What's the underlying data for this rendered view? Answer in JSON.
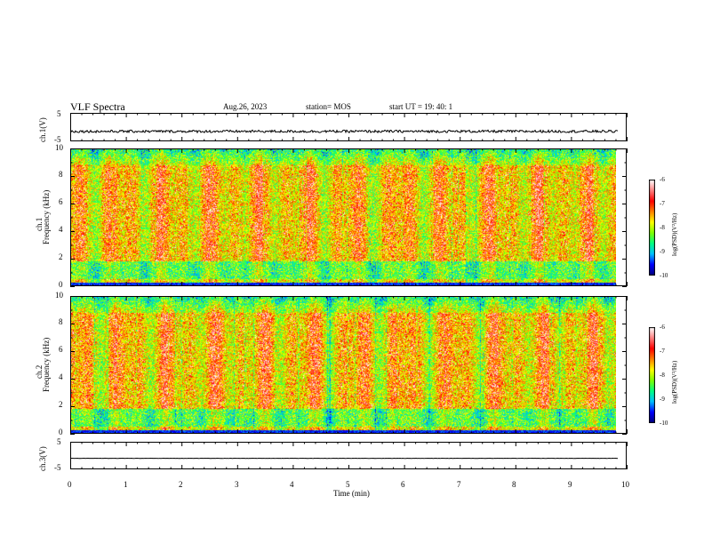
{
  "header": {
    "title": "VLF Spectra",
    "date": "Aug.26, 2023",
    "station": "station= MOS",
    "start": "start  UT =   19: 40: 1"
  },
  "chart_data": {
    "type": "heatmap",
    "xlabel": "Time  (min)",
    "xlim": [
      0,
      10
    ],
    "x_ticks": [
      "0",
      "1",
      "2",
      "3",
      "4",
      "5",
      "6",
      "7",
      "8",
      "9",
      "10"
    ],
    "panels": [
      {
        "id": "ch1-waveform",
        "type": "line",
        "ylabel": "ch.1(V)",
        "ylim": [
          -5,
          5
        ],
        "y_ticks": [
          "5",
          "-5"
        ],
        "baseline": -1.5
      },
      {
        "id": "ch1-spectrogram",
        "type": "heatmap",
        "ylabel_top": "ch.1",
        "ylabel": "Frequency  (kHz)",
        "ylim": [
          0,
          10
        ],
        "y_ticks": [
          "0",
          "2",
          "4",
          "6",
          "8",
          "10"
        ],
        "data_end_min": 9.85
      },
      {
        "id": "ch2-spectrogram",
        "type": "heatmap",
        "ylabel_top": "ch.2",
        "ylabel": "Frequency  (kHz)",
        "ylim": [
          0,
          10
        ],
        "y_ticks": [
          "0",
          "2",
          "4",
          "6",
          "8",
          "10"
        ],
        "data_end_min": 9.85
      },
      {
        "id": "ch3-waveform",
        "type": "line",
        "ylabel": "ch.3(V)",
        "ylim": [
          -5,
          5
        ],
        "y_ticks": [
          "5",
          "-5"
        ],
        "baseline": -1.0
      }
    ],
    "colorbar": {
      "label": "log(PSD)(V²/Hz)",
      "range": [
        -10,
        -6
      ],
      "ticks": [
        "-6",
        "-7",
        "-8",
        "-9",
        "-10"
      ],
      "colors": [
        "#000080",
        "#0000ff",
        "#00c0ff",
        "#00ff80",
        "#80ff00",
        "#ffff00",
        "#ff8000",
        "#ff0000",
        "#ff8080",
        "#ffffff"
      ]
    }
  }
}
